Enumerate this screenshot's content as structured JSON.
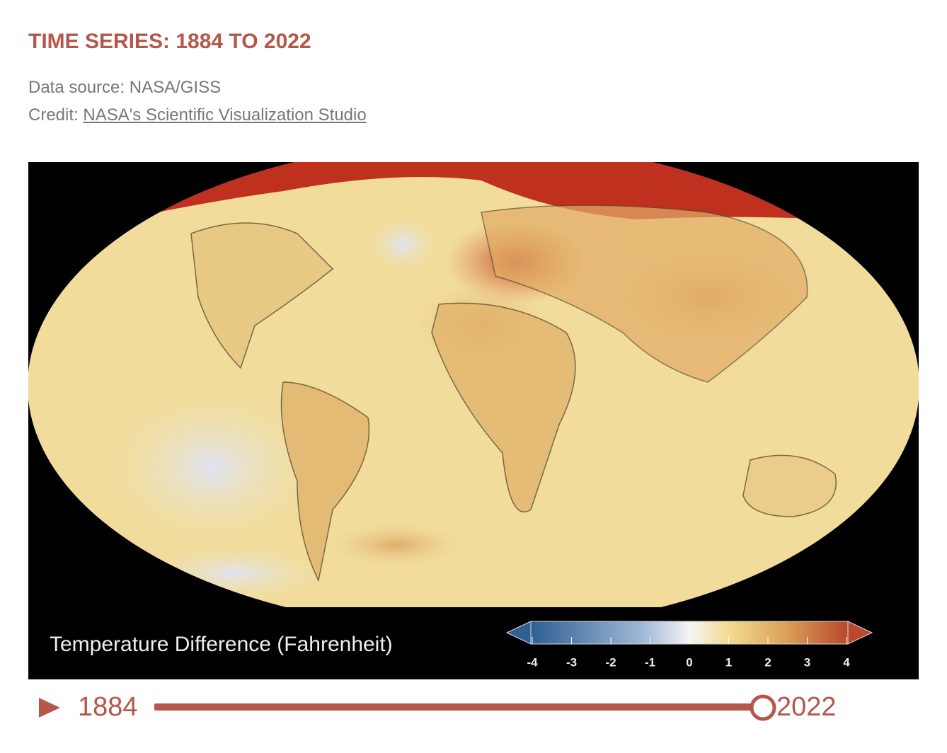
{
  "header": {
    "title": "TIME SERIES: 1884 TO 2022",
    "source": "Data source: NASA/GISS",
    "credit_label": "Credit:",
    "credit_link": "NASA's Scientific Visualization Studio"
  },
  "legend": {
    "title": "Temperature Difference (Fahrenheit)",
    "ticks": [
      -4,
      -3,
      -2,
      -1,
      0,
      1,
      2,
      3,
      4
    ]
  },
  "slider": {
    "start": "1884",
    "end": "2022"
  }
}
